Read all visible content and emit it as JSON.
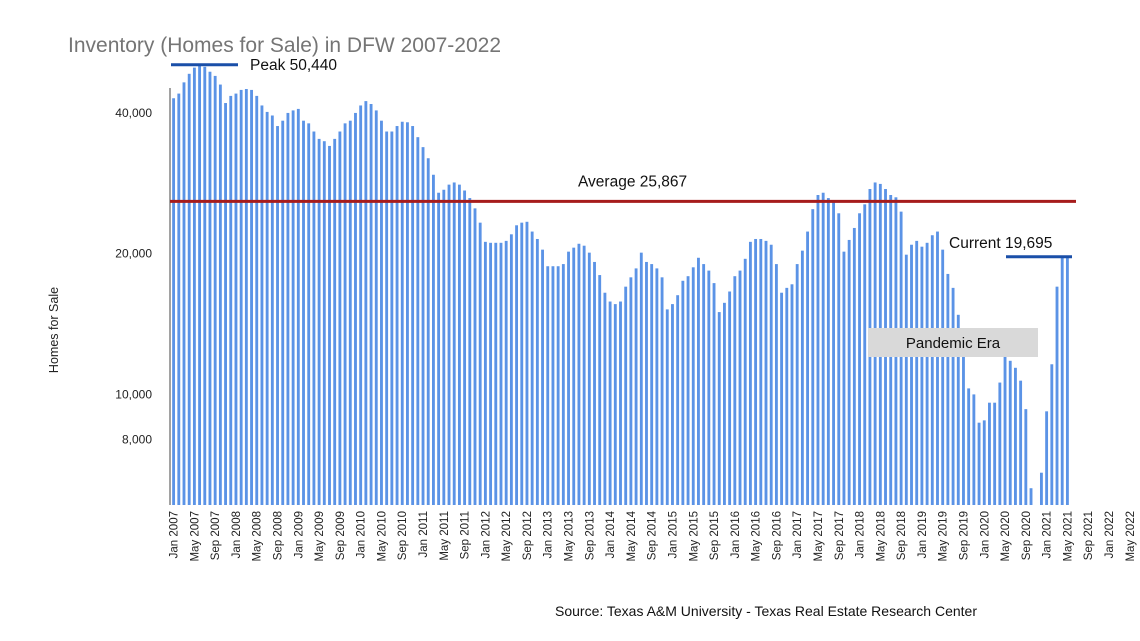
{
  "title": "Inventory (Homes for Sale) in DFW 2007-2022",
  "ylabel": "Homes for Sale",
  "source": "Source: Texas A&M University - Texas Real Estate Research Center",
  "colors": {
    "bar": "#5B93E6",
    "average_line": "#A61C1C",
    "marker_line": "#1A4FA8",
    "pandemic_box": "#D9D9D9",
    "title": "#757575"
  },
  "chart_data": {
    "type": "bar",
    "title": "Inventory (Homes for Sale) in DFW 2007-2022",
    "xlabel": "",
    "ylabel": "Homes for Sale",
    "yscale": "log",
    "ylim": [
      5800,
      54000
    ],
    "yticks": [
      8000,
      10000,
      20000,
      40000
    ],
    "ytick_labels": [
      "8,000",
      "10,000",
      "20,000",
      "40,000"
    ],
    "x_tick_labels": [
      "Jan 2007",
      "May 2007",
      "Sep 2007",
      "Jan 2008",
      "May 2008",
      "Sep 2008",
      "Jan 2009",
      "May 2009",
      "Sep 2009",
      "Jan 2010",
      "May 2010",
      "Sep 2010",
      "Jan 2011",
      "May 2011",
      "Sep 2011",
      "Jan 2012",
      "May 2012",
      "Sep 2012",
      "Jan 2013",
      "May 2013",
      "Sep 2013",
      "Jan 2014",
      "May 2014",
      "Sep 2014",
      "Jan 2015",
      "May 2015",
      "Sep 2015",
      "Jan 2016",
      "May 2016",
      "Sep 2016",
      "Jan 2017",
      "May 2017",
      "Sep 2017",
      "Jan 2018",
      "May 2018",
      "Sep 2018",
      "Jan 2019",
      "May 2019",
      "Sep 2019",
      "Jan 2020",
      "May 2020",
      "Sep 2020",
      "Jan 2021",
      "May 2021",
      "Sep 2021",
      "Jan 2022",
      "May 2022"
    ],
    "x_start": "Jan 2007",
    "x_end": "Aug 2022",
    "values": [
      43000,
      44000,
      46500,
      48500,
      50000,
      50440,
      50200,
      49000,
      48000,
      46000,
      42000,
      43500,
      44000,
      44800,
      45000,
      44800,
      43500,
      41500,
      40200,
      39500,
      37500,
      38500,
      40000,
      40500,
      40800,
      38500,
      38000,
      36500,
      35200,
      34800,
      34000,
      35200,
      36500,
      38000,
      38500,
      40000,
      41500,
      42400,
      41800,
      40500,
      38500,
      36500,
      36500,
      37500,
      38300,
      38200,
      37500,
      35500,
      33800,
      32000,
      29500,
      27000,
      27400,
      28100,
      28400,
      28100,
      27300,
      26300,
      25000,
      23300,
      21200,
      21100,
      21100,
      21100,
      21300,
      22000,
      23000,
      23300,
      23400,
      22300,
      21500,
      20400,
      18800,
      18800,
      18800,
      19000,
      20200,
      20600,
      21000,
      20800,
      20100,
      19200,
      18000,
      16500,
      15800,
      15600,
      15800,
      17000,
      17800,
      18600,
      20100,
      19200,
      19000,
      18600,
      17800,
      15200,
      15600,
      16300,
      17500,
      17900,
      18700,
      19600,
      19000,
      18400,
      17300,
      15000,
      15700,
      16600,
      17900,
      18400,
      19500,
      21200,
      21500,
      21500,
      21300,
      20900,
      19000,
      16500,
      16900,
      17200,
      19000,
      20300,
      22300,
      24900,
      26700,
      27000,
      26300,
      26000,
      24400,
      20200,
      21400,
      22700,
      24400,
      25500,
      27500,
      28400,
      28200,
      27500,
      26700,
      26400,
      24600,
      19900,
      20900,
      21300,
      20700,
      21100,
      21900,
      22300,
      20400,
      18100,
      16900,
      14800,
      13000,
      10300,
      10000,
      8700,
      8800,
      9600,
      9600,
      10600,
      12400,
      11800,
      11400,
      10700,
      9300,
      6300,
      5200,
      6800,
      9200,
      11600,
      17000,
      19695,
      19695
    ],
    "average": 25867,
    "annotations": {
      "peak": {
        "label": "Peak 50,440",
        "value": 50440
      },
      "average": {
        "label": "Average 25,867",
        "value": 25867
      },
      "current": {
        "label": "Current 19,695",
        "value": 19695
      },
      "pandemic": {
        "label": "Pandemic Era"
      }
    },
    "grid": false,
    "legend": "none"
  }
}
